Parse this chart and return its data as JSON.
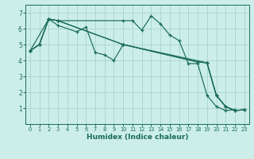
{
  "xlabel": "Humidex (Indice chaleur)",
  "bg_color": "#cceee8",
  "line_color": "#1a6b5a",
  "grid_color": "#aad8d0",
  "xlim": [
    -0.5,
    23.5
  ],
  "ylim": [
    0,
    7.5
  ],
  "yticks": [
    1,
    2,
    3,
    4,
    5,
    6,
    7
  ],
  "xticks": [
    0,
    1,
    2,
    3,
    4,
    5,
    6,
    7,
    8,
    9,
    10,
    11,
    12,
    13,
    14,
    15,
    16,
    17,
    18,
    19,
    20,
    21,
    22,
    23
  ],
  "lines": [
    {
      "x": [
        0,
        1,
        2,
        3,
        10,
        11,
        12,
        13,
        14,
        15,
        16,
        17,
        18,
        19,
        20,
        21,
        22,
        23
      ],
      "y": [
        4.6,
        5.0,
        6.6,
        6.5,
        6.5,
        6.5,
        5.9,
        6.8,
        6.3,
        5.6,
        5.25,
        3.8,
        3.8,
        1.8,
        1.1,
        0.85,
        0.9,
        null
      ]
    },
    {
      "x": [
        0,
        1,
        2,
        3,
        5,
        6,
        7,
        8,
        9,
        10,
        18,
        19,
        20,
        21,
        22,
        23
      ],
      "y": [
        4.6,
        5.0,
        6.6,
        6.2,
        5.8,
        6.1,
        4.5,
        4.35,
        4.0,
        5.0,
        3.9,
        3.85,
        1.8,
        1.1,
        0.85,
        0.9
      ]
    },
    {
      "x": [
        0,
        2,
        3,
        10,
        19,
        20,
        21,
        22,
        23
      ],
      "y": [
        4.6,
        6.6,
        6.5,
        5.0,
        3.85,
        1.8,
        1.1,
        0.85,
        0.9
      ]
    },
    {
      "x": [
        0,
        1,
        2,
        3,
        10,
        18,
        19,
        20,
        21,
        22,
        23
      ],
      "y": [
        4.6,
        5.0,
        6.6,
        6.5,
        5.0,
        3.9,
        3.85,
        1.8,
        1.1,
        0.85,
        0.9
      ]
    }
  ]
}
